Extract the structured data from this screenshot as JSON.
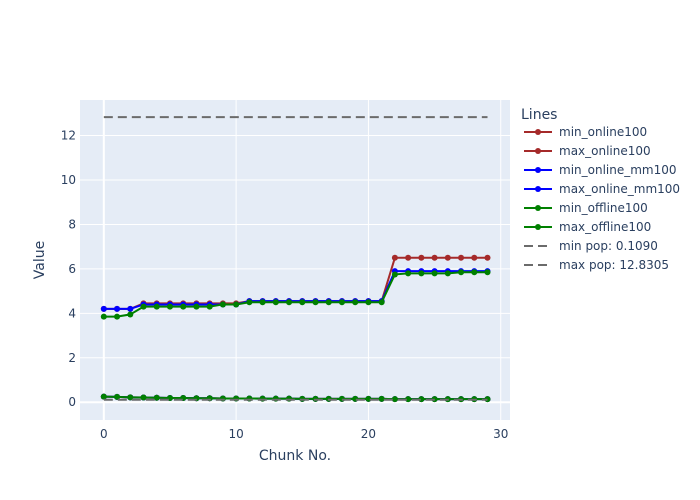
{
  "chart_data": {
    "type": "line",
    "xlabel": "Chunk No.",
    "ylabel": "Value",
    "xlim": [
      -1.8,
      30.7
    ],
    "ylim": [
      -0.8,
      13.6
    ],
    "x_ticks": [
      0,
      10,
      20,
      30
    ],
    "y_ticks": [
      0,
      2,
      4,
      6,
      8,
      10,
      12
    ],
    "grid": true,
    "legend": {
      "title": "Lines",
      "placement": "right"
    },
    "x": [
      0,
      1,
      2,
      3,
      4,
      5,
      6,
      7,
      8,
      9,
      10,
      11,
      12,
      13,
      14,
      15,
      16,
      17,
      18,
      19,
      20,
      21,
      22,
      23,
      24,
      25,
      26,
      27,
      28,
      29
    ],
    "series": [
      {
        "name": "min_online100",
        "color": "#a52a2a",
        "dash": "solid",
        "markers": true,
        "values": [
          0.25,
          0.24,
          0.22,
          0.21,
          0.2,
          0.19,
          0.19,
          0.18,
          0.18,
          0.17,
          0.17,
          0.17,
          0.16,
          0.16,
          0.16,
          0.15,
          0.15,
          0.15,
          0.15,
          0.15,
          0.15,
          0.15,
          0.14,
          0.14,
          0.14,
          0.14,
          0.14,
          0.14,
          0.14,
          0.14
        ]
      },
      {
        "name": "max_online100",
        "color": "#a52a2a",
        "dash": "solid",
        "markers": true,
        "values": [
          4.2,
          4.2,
          4.2,
          4.45,
          4.45,
          4.45,
          4.45,
          4.45,
          4.45,
          4.45,
          4.45,
          4.55,
          4.55,
          4.55,
          4.55,
          4.55,
          4.55,
          4.55,
          4.55,
          4.55,
          4.55,
          4.55,
          6.5,
          6.5,
          6.5,
          6.5,
          6.5,
          6.5,
          6.5,
          6.5
        ]
      },
      {
        "name": "min_online_mm100",
        "color": "#0000ff",
        "dash": "solid",
        "markers": true,
        "values": [
          0.25,
          0.24,
          0.22,
          0.21,
          0.2,
          0.19,
          0.19,
          0.18,
          0.18,
          0.17,
          0.17,
          0.17,
          0.16,
          0.16,
          0.16,
          0.15,
          0.15,
          0.15,
          0.15,
          0.15,
          0.15,
          0.15,
          0.14,
          0.14,
          0.14,
          0.14,
          0.14,
          0.14,
          0.14,
          0.14
        ]
      },
      {
        "name": "max_online_mm100",
        "color": "#0000ff",
        "dash": "solid",
        "markers": true,
        "values": [
          4.2,
          4.2,
          4.2,
          4.4,
          4.4,
          4.4,
          4.4,
          4.4,
          4.4,
          4.4,
          4.4,
          4.55,
          4.55,
          4.55,
          4.55,
          4.55,
          4.55,
          4.55,
          4.55,
          4.55,
          4.55,
          4.55,
          5.9,
          5.9,
          5.9,
          5.9,
          5.9,
          5.9,
          5.9,
          5.9
        ]
      },
      {
        "name": "min_offline100",
        "color": "#008000",
        "dash": "solid",
        "markers": true,
        "values": [
          0.25,
          0.24,
          0.22,
          0.21,
          0.2,
          0.19,
          0.19,
          0.18,
          0.18,
          0.17,
          0.17,
          0.17,
          0.16,
          0.16,
          0.16,
          0.15,
          0.15,
          0.15,
          0.15,
          0.15,
          0.15,
          0.15,
          0.14,
          0.14,
          0.14,
          0.14,
          0.14,
          0.14,
          0.14,
          0.14
        ]
      },
      {
        "name": "max_offline100",
        "color": "#008000",
        "dash": "solid",
        "markers": true,
        "values": [
          3.85,
          3.85,
          3.95,
          4.3,
          4.3,
          4.3,
          4.3,
          4.3,
          4.3,
          4.4,
          4.4,
          4.5,
          4.5,
          4.5,
          4.5,
          4.5,
          4.5,
          4.5,
          4.5,
          4.5,
          4.5,
          4.5,
          5.75,
          5.8,
          5.8,
          5.8,
          5.8,
          5.85,
          5.85,
          5.85
        ]
      },
      {
        "name": "min pop: 0.1090",
        "color": "#6b6b6b",
        "dash": "dash",
        "markers": false,
        "x": [
          0,
          29
        ],
        "values": [
          0.109,
          0.109
        ]
      },
      {
        "name": "max pop: 12.8305",
        "color": "#6b6b6b",
        "dash": "dash",
        "markers": false,
        "x": [
          0,
          29
        ],
        "values": [
          12.8305,
          12.8305
        ]
      }
    ]
  }
}
